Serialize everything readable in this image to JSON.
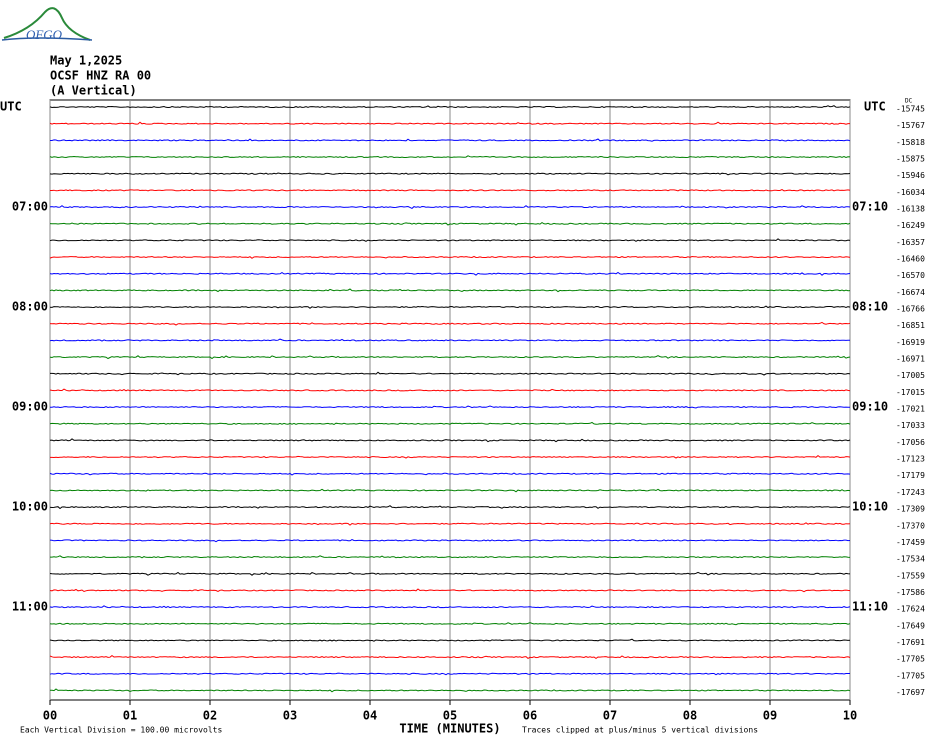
{
  "chart_data": {
    "type": "helicorder",
    "logo": "OFGO",
    "title_lines": [
      "May 1,2025",
      "OCSF HNZ RA 00",
      "(A Vertical)"
    ],
    "dc_label": "DC",
    "left_labels": [
      "UTC",
      null,
      null,
      null,
      null,
      null,
      "07:00",
      null,
      null,
      null,
      null,
      null,
      "08:00",
      null,
      null,
      null,
      null,
      null,
      "09:00",
      null,
      null,
      null,
      null,
      null,
      "10:00",
      null,
      null,
      null,
      null,
      null,
      "11:00",
      null,
      null,
      null,
      null,
      null
    ],
    "right_labels": [
      "UTC",
      null,
      null,
      null,
      null,
      null,
      "07:10",
      null,
      null,
      null,
      null,
      null,
      "08:10",
      null,
      null,
      null,
      null,
      null,
      "09:10",
      null,
      null,
      null,
      null,
      null,
      "10:10",
      null,
      null,
      null,
      null,
      null,
      "11:10",
      null,
      null,
      null,
      null,
      null
    ],
    "offsets": [
      -15745,
      -15767,
      -15818,
      -15875,
      -15946,
      -16034,
      -16138,
      -16249,
      -16357,
      -16460,
      -16570,
      -16674,
      -16766,
      -16851,
      -16919,
      -16971,
      -17005,
      -17015,
      -17021,
      -17033,
      -17056,
      -17123,
      -17179,
      -17243,
      -17309,
      -17370,
      -17459,
      -17534,
      -17559,
      -17586,
      -17624,
      -17649,
      -17691,
      -17705,
      -17705,
      -17697
    ],
    "colors": [
      "#000000",
      "#ff0000",
      "#0000ff",
      "#008000"
    ],
    "xlim": [
      0,
      10
    ],
    "xticks": [
      {
        "value": 0,
        "label": "00"
      },
      {
        "value": 1,
        "label": "01"
      },
      {
        "value": 2,
        "label": "02"
      },
      {
        "value": 3,
        "label": "03"
      },
      {
        "value": 4,
        "label": "04"
      },
      {
        "value": 5,
        "label": "05"
      },
      {
        "value": 6,
        "label": "06"
      },
      {
        "value": 7,
        "label": "07"
      },
      {
        "value": 8,
        "label": "08"
      },
      {
        "value": 9,
        "label": "09"
      },
      {
        "value": 10,
        "label": "10"
      }
    ],
    "x_label": "TIME (MINUTES)",
    "footer_left": "Each Vertical Division =  100.00 microvolts",
    "footer_right": "Traces clipped at plus/minus 5 vertical divisions",
    "grid": true
  }
}
